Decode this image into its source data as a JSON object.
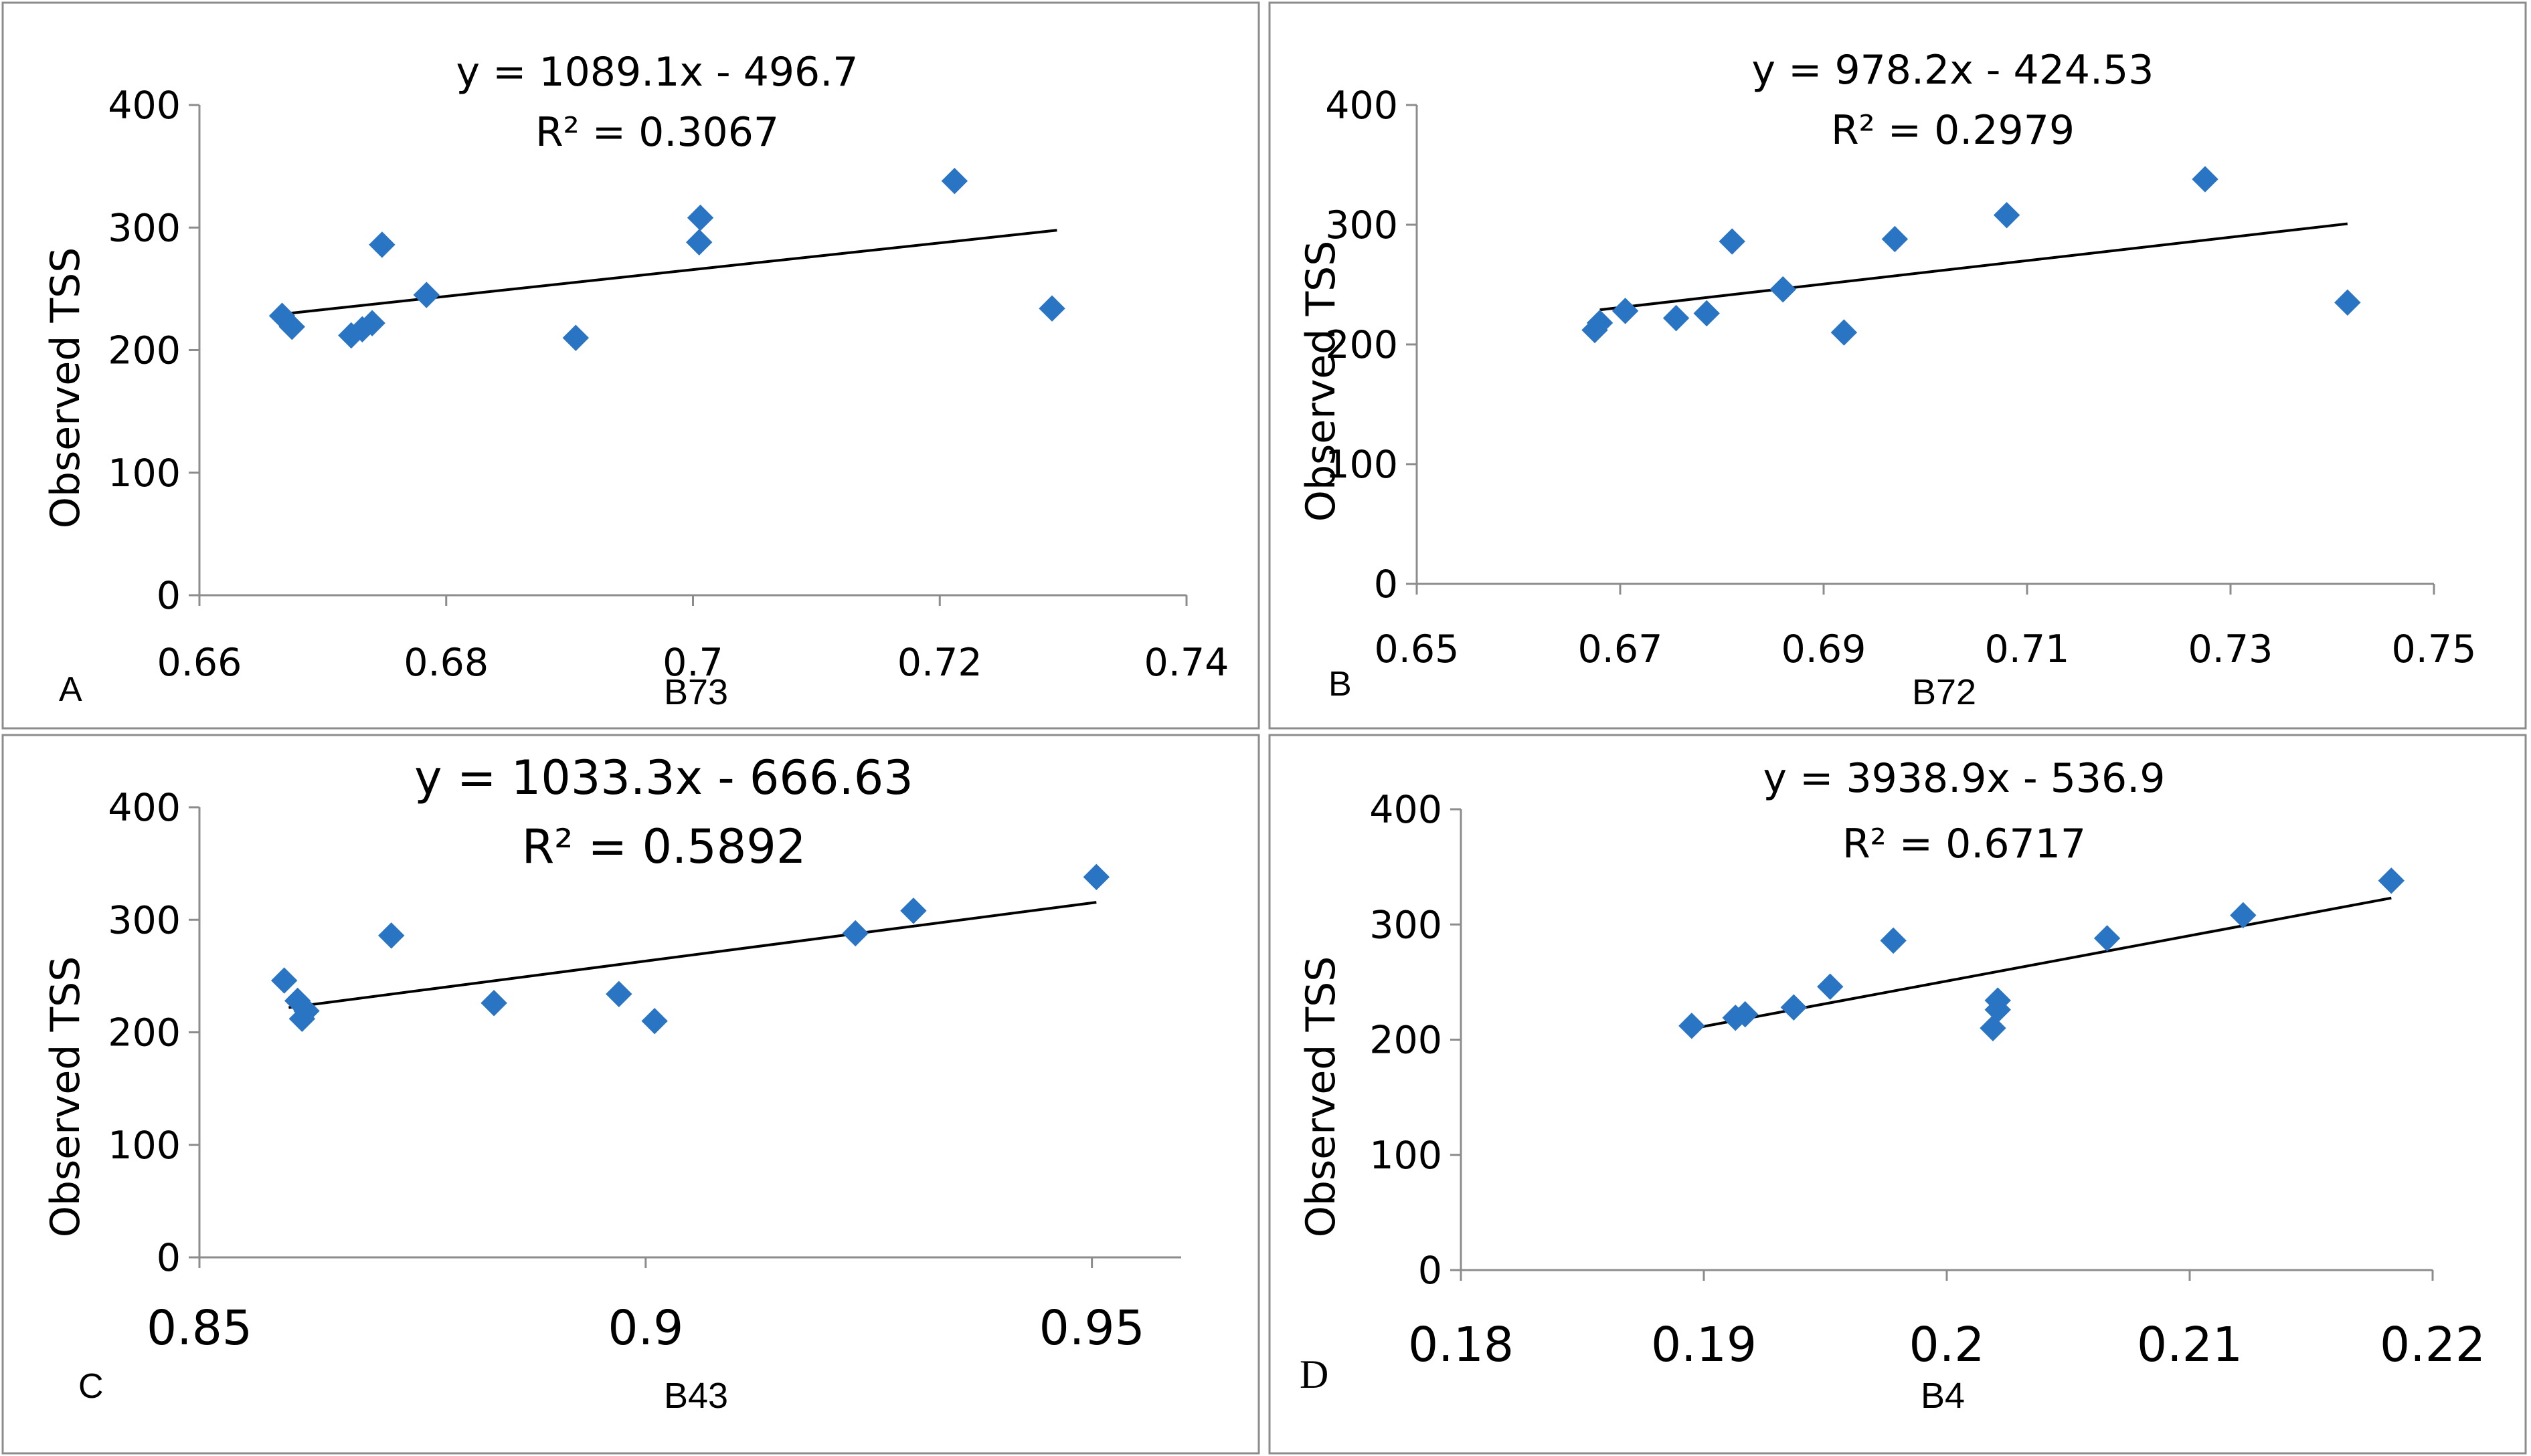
{
  "figure": {
    "point_color": "#2a74c4",
    "line_color": "#000000",
    "frame_color": "#8c8c8c"
  },
  "chart_data": [
    {
      "type": "scatter",
      "panel_label": "A",
      "title": "",
      "equation": "y = 1089.1x - 496.7",
      "r_squared": "R² = 0.3067",
      "xlabel": "B73",
      "ylabel": "Observed TSS",
      "xlim": [
        0.66,
        0.74
      ],
      "ylim": [
        0,
        400
      ],
      "xticks": [
        0.66,
        0.68,
        0.7,
        0.72,
        0.74
      ],
      "xtick_labels": [
        "0.66",
        "0.68",
        "0.7",
        "0.72",
        "0.74"
      ],
      "yticks": [
        0,
        100,
        200,
        300,
        400
      ],
      "ytick_labels": [
        "0",
        "100",
        "200",
        "300",
        "400"
      ],
      "trendline": {
        "slope": 1089.1,
        "intercept": -496.7,
        "x_range": [
          0.6667,
          0.7295
        ]
      },
      "series": [
        {
          "name": "Observed TSS",
          "x": [
            0.6667,
            0.6675,
            0.6723,
            0.6732,
            0.674,
            0.6748,
            0.6784,
            0.6905,
            0.7005,
            0.7006,
            0.7212,
            0.7291
          ],
          "y": [
            228,
            219,
            212,
            217,
            222,
            286,
            245,
            210,
            288,
            308,
            338,
            234
          ]
        }
      ]
    },
    {
      "type": "scatter",
      "panel_label": "B",
      "title": "",
      "equation": "y = 978.2x - 424.53",
      "r_squared": "R² = 0.2979",
      "xlabel": "B72",
      "ylabel": "Observed TSS",
      "xlim": [
        0.65,
        0.75
      ],
      "ylim": [
        0,
        400
      ],
      "xticks": [
        0.65,
        0.67,
        0.69,
        0.71,
        0.73,
        0.75
      ],
      "xtick_labels": [
        "0.65",
        "0.67",
        "0.69",
        "0.71",
        "0.73",
        "0.75"
      ],
      "yticks": [
        0,
        100,
        200,
        300,
        400
      ],
      "ytick_labels": [
        "0",
        "100",
        "200",
        "300",
        "400"
      ],
      "trendline": {
        "slope": 978.2,
        "intercept": -424.53,
        "x_range": [
          0.668,
          0.7415
        ]
      },
      "series": [
        {
          "name": "Observed TSS",
          "x": [
            0.6675,
            0.668,
            0.6705,
            0.6755,
            0.6785,
            0.681,
            0.686,
            0.692,
            0.697,
            0.708,
            0.7275,
            0.7415
          ],
          "y": [
            212,
            218,
            228,
            222,
            226,
            286,
            246,
            210,
            288,
            308,
            338,
            235
          ]
        }
      ]
    },
    {
      "type": "scatter",
      "panel_label": "C",
      "title": "",
      "equation": "y = 1033.3x - 666.63",
      "r_squared": "R² = 0.5892",
      "xlabel": "B43",
      "ylabel": "Observed TSS",
      "xlim": [
        0.85,
        0.96
      ],
      "ylim": [
        0,
        400
      ],
      "xticks": [
        0.85,
        0.9,
        0.95
      ],
      "xtick_labels": [
        "0.85",
        "0.9",
        "0.95"
      ],
      "yticks": [
        0,
        100,
        200,
        300,
        400
      ],
      "ytick_labels": [
        "0",
        "100",
        "200",
        "300",
        "400"
      ],
      "trendline": {
        "slope": 1033.3,
        "intercept": -666.63,
        "x_range": [
          0.86,
          0.9505
        ]
      },
      "series": [
        {
          "name": "Observed TSS",
          "x": [
            0.8595,
            0.861,
            0.8615,
            0.862,
            0.8715,
            0.883,
            0.897,
            0.901,
            0.9235,
            0.93,
            0.9505
          ],
          "y": [
            246,
            228,
            212,
            219,
            286,
            226,
            234,
            210,
            288,
            308,
            338
          ]
        }
      ]
    },
    {
      "type": "scatter",
      "panel_label": "D",
      "title": "",
      "equation": "y = 3938.9x - 536.9",
      "r_squared": "R² = 0.6717",
      "xlabel": "B4",
      "ylabel": "Observed TSS",
      "xlim": [
        0.18,
        0.22
      ],
      "ylim": [
        0,
        400
      ],
      "xticks": [
        0.18,
        0.19,
        0.2,
        0.21,
        0.22
      ],
      "xtick_labels": [
        "0.18",
        "0.19",
        "0.2",
        "0.21",
        "0.22"
      ],
      "yticks": [
        0,
        100,
        200,
        300,
        400
      ],
      "ytick_labels": [
        "0",
        "100",
        "200",
        "300",
        "400"
      ],
      "trendline": {
        "slope": 3938.9,
        "intercept": -536.9,
        "x_range": [
          0.1895,
          0.2183
        ]
      },
      "series": [
        {
          "name": "Observed TSS",
          "x": [
            0.1895,
            0.1913,
            0.1917,
            0.1937,
            0.1952,
            0.1978,
            0.2019,
            0.2021,
            0.2021,
            0.2066,
            0.2122,
            0.2183
          ],
          "y": [
            212,
            219,
            222,
            228,
            246,
            286,
            210,
            226,
            234,
            288,
            308,
            338
          ]
        }
      ]
    }
  ]
}
